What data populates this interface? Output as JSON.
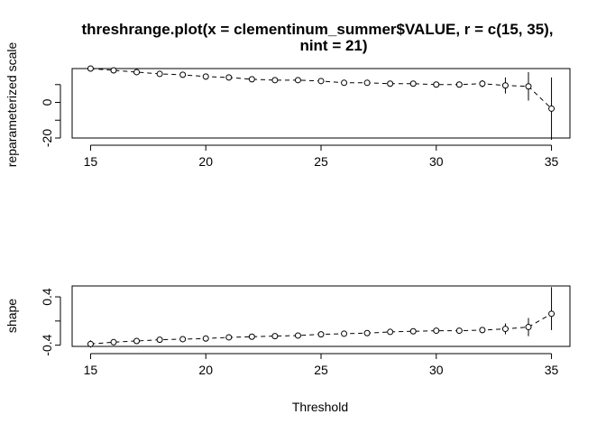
{
  "chart_data": [
    {
      "type": "scatter",
      "panel": "top",
      "title_line1": "threshrange.plot(x = clementinum_summer$VALUE, r = c(15, 35),",
      "title_line2": "nint = 21)",
      "xlabel": "",
      "ylabel": "reparameterized scale",
      "xlim": [
        14.2,
        35.8
      ],
      "ylim": [
        -20,
        19
      ],
      "xticks": [
        "15",
        "20",
        "25",
        "30",
        "35"
      ],
      "yticks": [
        "-20",
        "0"
      ],
      "x": [
        15,
        16,
        17,
        18,
        19,
        20,
        21,
        22,
        23,
        24,
        25,
        26,
        27,
        28,
        29,
        30,
        31,
        32,
        33,
        34,
        35
      ],
      "y": [
        19,
        18,
        17,
        16,
        15.5,
        14.5,
        14,
        13,
        12.5,
        12.5,
        12,
        11,
        11,
        10.5,
        10.5,
        10,
        10,
        10.5,
        9.5,
        9,
        -3.5
      ],
      "lower": [
        18,
        17,
        16,
        15,
        14.5,
        13.5,
        13,
        12,
        11.5,
        11.5,
        11,
        10,
        10,
        9.5,
        9.5,
        9,
        9,
        8.5,
        5,
        1,
        -21
      ],
      "upper": [
        20,
        19,
        18,
        17,
        16.5,
        15.5,
        15,
        14,
        13.5,
        13.5,
        13,
        12,
        12,
        11.5,
        11.5,
        11,
        11,
        12.5,
        14,
        17,
        14
      ],
      "grid": false,
      "line_style": "dashed",
      "marker": "open-circle"
    },
    {
      "type": "scatter",
      "panel": "bottom",
      "xlabel": "Threshold",
      "ylabel": "shape",
      "xlim": [
        14.2,
        35.8
      ],
      "ylim": [
        -0.42,
        0.58
      ],
      "xticks": [
        "15",
        "20",
        "25",
        "30",
        "35"
      ],
      "yticks": [
        "-0.4",
        "0.4"
      ],
      "x": [
        15,
        16,
        17,
        18,
        19,
        20,
        21,
        22,
        23,
        24,
        25,
        26,
        27,
        28,
        29,
        30,
        31,
        32,
        33,
        34,
        35
      ],
      "y": [
        -0.38,
        -0.35,
        -0.33,
        -0.31,
        -0.3,
        -0.29,
        -0.27,
        -0.26,
        -0.25,
        -0.24,
        -0.22,
        -0.21,
        -0.2,
        -0.18,
        -0.17,
        -0.16,
        -0.16,
        -0.15,
        -0.13,
        -0.1,
        0.12
      ],
      "lower": [
        -0.44,
        -0.39,
        -0.36,
        -0.33,
        -0.32,
        -0.31,
        -0.29,
        -0.28,
        -0.27,
        -0.26,
        -0.24,
        -0.23,
        -0.22,
        -0.2,
        -0.19,
        -0.18,
        -0.19,
        -0.2,
        -0.22,
        -0.25,
        -0.15
      ],
      "upper": [
        -0.32,
        -0.31,
        -0.3,
        -0.29,
        -0.28,
        -0.27,
        -0.25,
        -0.24,
        -0.23,
        -0.22,
        -0.2,
        -0.19,
        -0.18,
        -0.16,
        -0.15,
        -0.14,
        -0.13,
        -0.1,
        -0.04,
        0.05,
        0.56
      ],
      "grid": false,
      "line_style": "dashed",
      "marker": "open-circle"
    }
  ]
}
